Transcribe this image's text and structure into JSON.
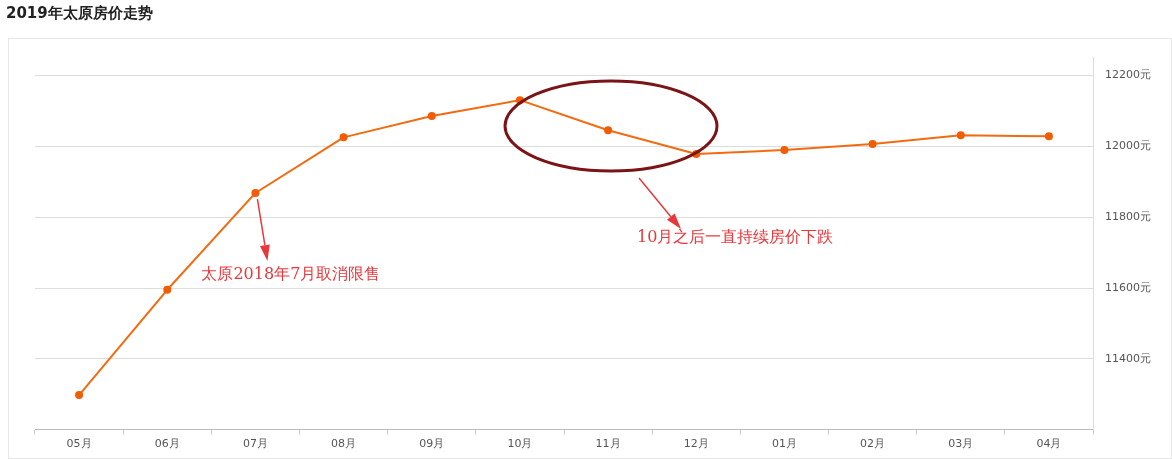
{
  "chart_data": {
    "type": "line",
    "title": "2019年太原房价走势",
    "categories": [
      "05月",
      "06月",
      "07月",
      "08月",
      "09月",
      "10月",
      "11月",
      "12月",
      "01月",
      "02月",
      "03月",
      "04月"
    ],
    "series": [
      {
        "color": "#f26b11",
        "values": [
          11298,
          11595,
          11868,
          12025,
          12085,
          12130,
          12045,
          11978,
          11989,
          12006,
          12031,
          12028
        ]
      }
    ],
    "ylim": [
      11200,
      12250
    ],
    "yticks": [
      {
        "value": 11400,
        "label": "11400元"
      },
      {
        "value": 11600,
        "label": "11600元"
      },
      {
        "value": 11800,
        "label": "11800元"
      },
      {
        "value": 12000,
        "label": "12000元"
      },
      {
        "value": 12200,
        "label": "12200元"
      }
    ],
    "grid": "y",
    "legend": false,
    "marker": "circle",
    "line_style": "solid",
    "annotations": [
      {
        "text": "太原2018年7月取消限售",
        "x": "07月",
        "y": 11868
      },
      "10月之后一直持续房价下跌"
    ]
  }
}
